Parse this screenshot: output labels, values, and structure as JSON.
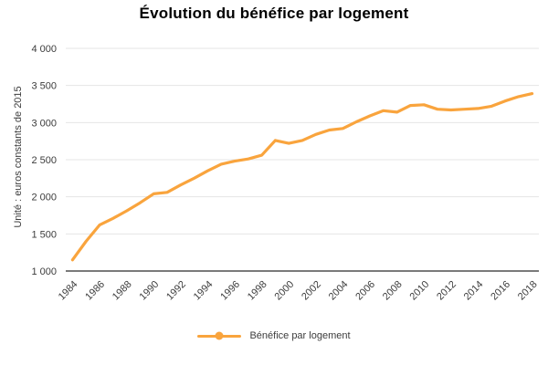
{
  "chart_data": {
    "type": "line",
    "title": "Évolution du bénéfice par logement",
    "ylabel": "Unité : euros constants de 2015",
    "xlabel": "",
    "legend_label": "Bénéfice par logement",
    "legend_position": "bottom",
    "grid": true,
    "ylim": [
      1000,
      4000
    ],
    "yticks": [
      4000,
      3500,
      3000,
      2500,
      2000,
      1500,
      1000
    ],
    "ytick_labels": [
      "4 000",
      "3 500",
      "3 000",
      "2 500",
      "2 000",
      "1 500",
      "1 000"
    ],
    "xtick_labels": [
      "1984",
      "1986",
      "1988",
      "1990",
      "1992",
      "1994",
      "1996",
      "1998",
      "2000",
      "2002",
      "2004",
      "2006",
      "2008",
      "2010",
      "2012",
      "2014",
      "2016",
      "2018"
    ],
    "x": [
      1984,
      1985,
      1986,
      1987,
      1988,
      1989,
      1990,
      1991,
      1992,
      1993,
      1994,
      1995,
      1996,
      1997,
      1998,
      1999,
      2000,
      2001,
      2002,
      2003,
      2004,
      2005,
      2006,
      2007,
      2008,
      2009,
      2010,
      2011,
      2012,
      2013,
      2014,
      2015,
      2016,
      2017,
      2018
    ],
    "series": [
      {
        "name": "Bénéfice par logement",
        "values": [
          1150,
          1400,
          1620,
          1710,
          1810,
          1920,
          2040,
          2060,
          2160,
          2250,
          2350,
          2440,
          2480,
          2510,
          2560,
          2760,
          2720,
          2760,
          2840,
          2900,
          2920,
          3010,
          3090,
          3160,
          3140,
          3230,
          3240,
          3180,
          3170,
          3180,
          3190,
          3220,
          3290,
          3350,
          3390
        ]
      }
    ],
    "colors": {
      "line": "#F9A43D",
      "grid": "#E4E4E4",
      "axis": "#2B2B2B",
      "tick_text": "#3C3C3C",
      "title_text": "#000000"
    }
  }
}
